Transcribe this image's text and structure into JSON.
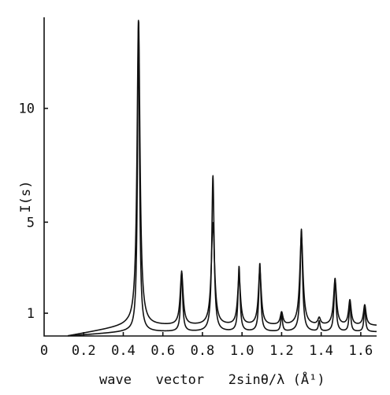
{
  "chart_data": {
    "type": "line",
    "xlabel": "wave   vector   2sinθ/λ (Å¹)",
    "ylabel": "I(s)",
    "xlim": [
      0,
      1.68
    ],
    "ylim": [
      0,
      14
    ],
    "x_ticks": [
      {
        "value": 0,
        "label": "0"
      },
      {
        "value": 0.2,
        "label": "0.2"
      },
      {
        "value": 0.4,
        "label": "0.4"
      },
      {
        "value": 0.6,
        "label": "0.6"
      },
      {
        "value": 0.8,
        "label": "0.8"
      },
      {
        "value": 1.0,
        "label": "1.0"
      },
      {
        "value": 1.2,
        "label": "1.2"
      },
      {
        "value": 1.4,
        "label": "1.4"
      },
      {
        "value": 1.6,
        "label": "1.6"
      }
    ],
    "y_ticks": [
      {
        "value": 1,
        "label": "1"
      },
      {
        "value": 5,
        "label": "5"
      },
      {
        "value": 10,
        "label": "10"
      }
    ],
    "grid": false,
    "legend": "none",
    "series": [
      {
        "baseline": 0.18,
        "peaks": [
          {
            "x": 0.477,
            "height": 13.75,
            "width": 0.006
          },
          {
            "x": 0.695,
            "height": 2.65,
            "width": 0.006
          },
          {
            "x": 0.853,
            "height": 6.85,
            "width": 0.007
          },
          {
            "x": 0.985,
            "height": 2.85,
            "width": 0.006
          },
          {
            "x": 1.09,
            "height": 3.0,
            "width": 0.006
          },
          {
            "x": 1.2,
            "height": 0.75,
            "width": 0.005
          },
          {
            "x": 1.3,
            "height": 4.5,
            "width": 0.007
          },
          {
            "x": 1.39,
            "height": 0.45,
            "width": 0.005
          },
          {
            "x": 1.47,
            "height": 2.35,
            "width": 0.006
          },
          {
            "x": 1.545,
            "height": 1.3,
            "width": 0.005
          },
          {
            "x": 1.62,
            "height": 1.1,
            "width": 0.005
          }
        ]
      },
      {
        "baseline": 0.45,
        "peaks": [
          {
            "x": 0.477,
            "height": 13.4,
            "width": 0.009
          },
          {
            "x": 0.695,
            "height": 2.3,
            "width": 0.009
          },
          {
            "x": 0.853,
            "height": 4.5,
            "width": 0.01
          },
          {
            "x": 0.985,
            "height": 2.1,
            "width": 0.009
          },
          {
            "x": 1.09,
            "height": 2.4,
            "width": 0.009
          },
          {
            "x": 1.2,
            "height": 0.55,
            "width": 0.008
          },
          {
            "x": 1.3,
            "height": 3.9,
            "width": 0.01
          },
          {
            "x": 1.39,
            "height": 0.3,
            "width": 0.008
          },
          {
            "x": 1.47,
            "height": 2.0,
            "width": 0.009
          },
          {
            "x": 1.545,
            "height": 1.1,
            "width": 0.008
          },
          {
            "x": 1.62,
            "height": 0.9,
            "width": 0.008
          }
        ]
      }
    ]
  }
}
